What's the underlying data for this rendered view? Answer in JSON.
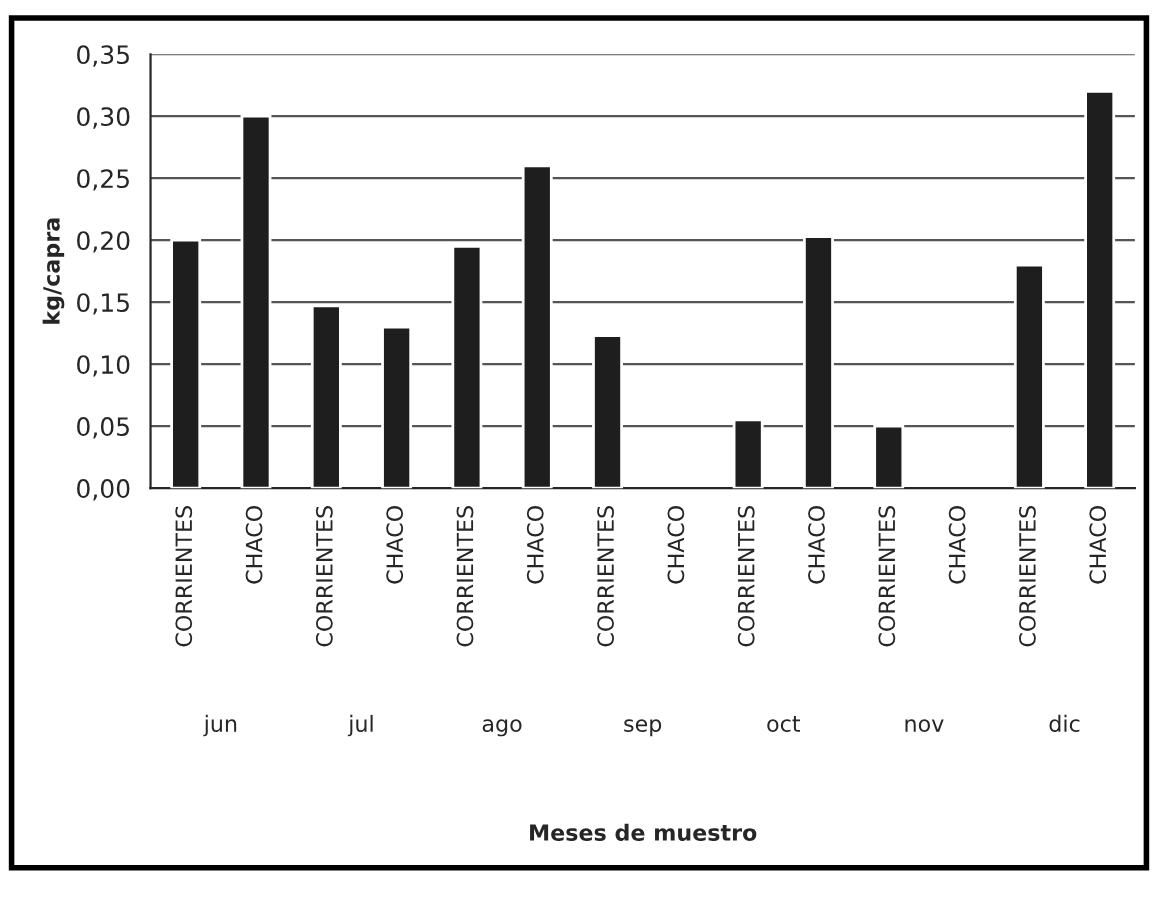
{
  "chart_data": {
    "type": "bar",
    "categories": [
      "CORRIENTES",
      "CHACO",
      "CORRIENTES",
      "CHACO",
      "CORRIENTES",
      "CHACO",
      "CORRIENTES",
      "CHACO",
      "CORRIENTES",
      "CHACO",
      "CORRIENTES",
      "CHACO",
      "CORRIENTES",
      "CHACO"
    ],
    "values": [
      0.2,
      0.3,
      0.147,
      0.13,
      0.195,
      0.26,
      0.123,
      null,
      0.055,
      0.203,
      0.05,
      null,
      0.18,
      0.32
    ],
    "color": "#1e1e1e",
    "ylabel": "kg/capra",
    "annotations": [
      "jun",
      "jul",
      "ago",
      "sep",
      "oct",
      "nov",
      "dic",
      "Meses de muestro"
    ],
    "ylim": [
      0,
      0.35
    ],
    "yticks": [
      {
        "value": 0,
        "label": "0,00"
      },
      {
        "value": 0.05,
        "label": "0,05"
      },
      {
        "value": 0.1,
        "label": "0,10"
      },
      {
        "value": 0.15,
        "label": "0,15"
      },
      {
        "value": 0.2,
        "label": "0,20"
      },
      {
        "value": 0.25,
        "label": "0,25"
      },
      {
        "value": 0.3,
        "label": "0,30"
      },
      {
        "value": 0.35,
        "label": "0,35"
      }
    ],
    "grid": "y"
  }
}
